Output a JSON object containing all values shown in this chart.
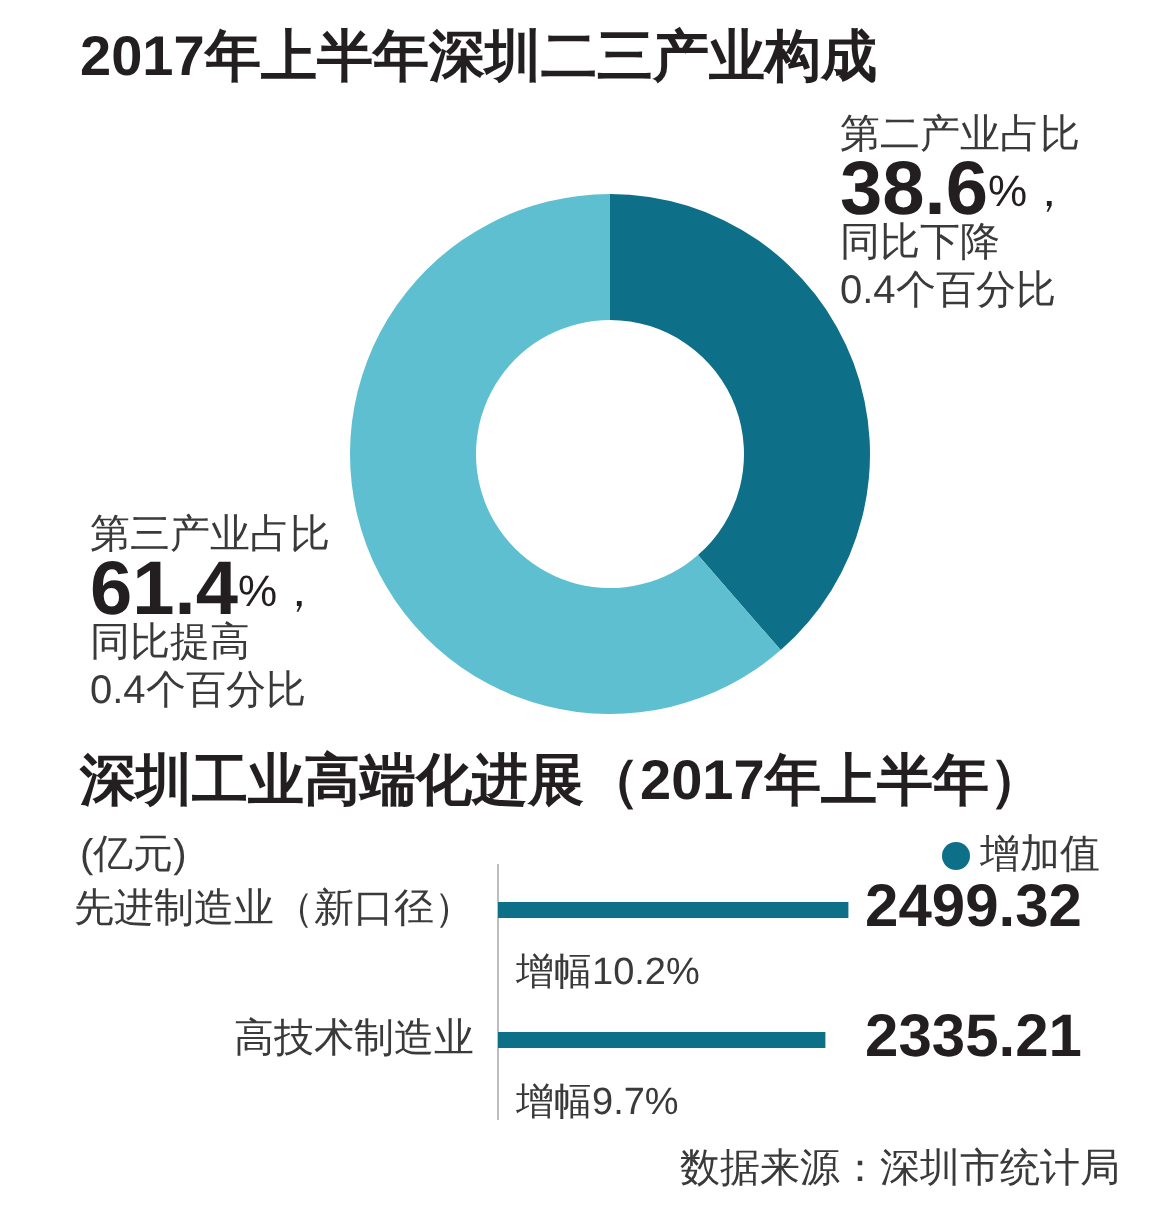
{
  "chart_data": [
    {
      "type": "donut",
      "title": "2017年上半年深圳二三产业构成",
      "categories": [
        "第二产业占比",
        "第三产业占比"
      ],
      "values": [
        38.6,
        61.4
      ],
      "colors": [
        "#0d6f88",
        "#5dbfd0"
      ],
      "value_labels": [
        "38.6%，",
        "61.4%，"
      ],
      "annotations": [
        "同比下降\n0.4个百分比",
        "同比提高\n0.4个百分比"
      ]
    },
    {
      "type": "bar",
      "orientation": "horizontal",
      "title": "深圳工业高端化进展（2017年上半年）",
      "xlabel": "(亿元)",
      "categories": [
        "先进制造业（新口径）",
        "高技术制造业"
      ],
      "series": [
        {
          "name": "增加值",
          "color": "#0d6f88",
          "values": [
            2499.32,
            2335.21
          ]
        }
      ],
      "data_labels": true,
      "legend": "top right",
      "tick_labels": "y",
      "annotations": [
        {
          "text": "增幅10.2%",
          "y": "先进制造业（新口径）"
        },
        {
          "text": "增幅9.7%",
          "y": "高技术制造业"
        },
        "数据来源：深圳市统计局"
      ]
    }
  ]
}
